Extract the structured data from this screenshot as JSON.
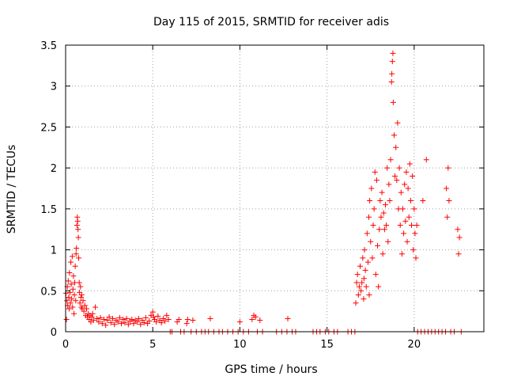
{
  "chart_data": {
    "type": "scatter",
    "title": "Day 115 of 2015, SRMTID for receiver adis",
    "xlabel": "GPS time / hours",
    "ylabel": "SRMTID / TECUs",
    "xlim": [
      0,
      24
    ],
    "ylim": [
      0,
      3.5
    ],
    "grid": true,
    "marker": "+",
    "marker_color": "#ff0000",
    "x_ticks": [
      0,
      5,
      10,
      15,
      20
    ],
    "x_tick_labels": [
      "0",
      "5",
      "10",
      "15",
      "20"
    ],
    "y_ticks": [
      0,
      0.5,
      1,
      1.5,
      2,
      2.5,
      3,
      3.5
    ],
    "y_tick_labels": [
      "0",
      "0.5",
      "1",
      "1.5",
      "2",
      "2.5",
      "3",
      "3.5"
    ],
    "series": [
      {
        "name": "SRMTID",
        "points": [
          [
            0.02,
            0.47
          ],
          [
            0.05,
            0.15
          ],
          [
            0.08,
            0.38
          ],
          [
            0.1,
            0.55
          ],
          [
            0.12,
            0.32
          ],
          [
            0.15,
            0.62
          ],
          [
            0.18,
            0.42
          ],
          [
            0.2,
            0.28
          ],
          [
            0.22,
            0.72
          ],
          [
            0.25,
            0.48
          ],
          [
            0.28,
            0.35
          ],
          [
            0.3,
            0.85
          ],
          [
            0.32,
            0.58
          ],
          [
            0.35,
            0.4
          ],
          [
            0.38,
            0.92
          ],
          [
            0.4,
            0.3
          ],
          [
            0.42,
            0.52
          ],
          [
            0.45,
            0.68
          ],
          [
            0.48,
            0.22
          ],
          [
            0.5,
            0.45
          ],
          [
            0.52,
            0.6
          ],
          [
            0.55,
            0.8
          ],
          [
            0.58,
            0.38
          ],
          [
            0.6,
            0.95
          ],
          [
            0.62,
            1.02
          ],
          [
            0.65,
            1.3
          ],
          [
            0.67,
            1.4
          ],
          [
            0.69,
            1.35
          ],
          [
            0.71,
            1.25
          ],
          [
            0.73,
            1.15
          ],
          [
            0.75,
            0.9
          ],
          [
            0.78,
            0.6
          ],
          [
            0.8,
            0.48
          ],
          [
            0.82,
            0.35
          ],
          [
            0.85,
            0.55
          ],
          [
            0.88,
            0.42
          ],
          [
            0.9,
            0.3
          ],
          [
            0.92,
            0.45
          ],
          [
            0.95,
            0.28
          ],
          [
            1.0,
            0.38
          ],
          [
            1.05,
            0.25
          ],
          [
            1.1,
            0.32
          ],
          [
            1.15,
            0.2
          ],
          [
            1.2,
            0.28
          ],
          [
            1.25,
            0.18
          ],
          [
            1.3,
            0.22
          ],
          [
            1.35,
            0.15
          ],
          [
            1.4,
            0.2
          ],
          [
            1.45,
            0.12
          ],
          [
            1.5,
            0.18
          ],
          [
            1.55,
            0.22
          ],
          [
            1.6,
            0.14
          ],
          [
            1.7,
            0.3
          ],
          [
            1.8,
            0.16
          ],
          [
            1.9,
            0.12
          ],
          [
            2.0,
            0.17
          ],
          [
            2.1,
            0.1
          ],
          [
            2.2,
            0.15
          ],
          [
            2.3,
            0.08
          ],
          [
            2.4,
            0.14
          ],
          [
            2.5,
            0.18
          ],
          [
            2.6,
            0.11
          ],
          [
            2.7,
            0.16
          ],
          [
            2.8,
            0.09
          ],
          [
            2.9,
            0.14
          ],
          [
            3.0,
            0.12
          ],
          [
            3.1,
            0.17
          ],
          [
            3.2,
            0.1
          ],
          [
            3.3,
            0.15
          ],
          [
            3.4,
            0.11
          ],
          [
            3.5,
            0.16
          ],
          [
            3.6,
            0.09
          ],
          [
            3.7,
            0.13
          ],
          [
            3.8,
            0.15
          ],
          [
            3.9,
            0.1
          ],
          [
            4.0,
            0.14
          ],
          [
            4.1,
            0.12
          ],
          [
            4.2,
            0.16
          ],
          [
            4.3,
            0.09
          ],
          [
            4.4,
            0.14
          ],
          [
            4.5,
            0.11
          ],
          [
            4.6,
            0.17
          ],
          [
            4.7,
            0.1
          ],
          [
            4.8,
            0.13
          ],
          [
            4.9,
            0.2
          ],
          [
            5.0,
            0.24
          ],
          [
            5.05,
            0.18
          ],
          [
            5.1,
            0.15
          ],
          [
            5.2,
            0.12
          ],
          [
            5.3,
            0.19
          ],
          [
            5.4,
            0.14
          ],
          [
            5.5,
            0.11
          ],
          [
            5.6,
            0.16
          ],
          [
            5.7,
            0.13
          ],
          [
            5.8,
            0.2
          ],
          [
            5.9,
            0.15
          ],
          [
            6.0,
            0.0
          ],
          [
            6.1,
            0.0
          ],
          [
            6.4,
            0.12
          ],
          [
            6.5,
            0.15
          ],
          [
            6.6,
            0.0
          ],
          [
            6.8,
            0.0
          ],
          [
            6.95,
            0.1
          ],
          [
            7.0,
            0.15
          ],
          [
            7.2,
            0.0
          ],
          [
            7.3,
            0.14
          ],
          [
            7.5,
            0.0
          ],
          [
            7.8,
            0.0
          ],
          [
            8.0,
            0.0
          ],
          [
            8.2,
            0.0
          ],
          [
            8.3,
            0.16
          ],
          [
            8.5,
            0.0
          ],
          [
            8.8,
            0.0
          ],
          [
            9.0,
            0.0
          ],
          [
            9.3,
            0.0
          ],
          [
            9.6,
            0.0
          ],
          [
            9.9,
            0.0
          ],
          [
            10.0,
            0.12
          ],
          [
            10.2,
            0.0
          ],
          [
            10.5,
            0.0
          ],
          [
            10.7,
            0.15
          ],
          [
            10.8,
            0.2
          ],
          [
            10.9,
            0.18
          ],
          [
            11.0,
            0.0
          ],
          [
            11.15,
            0.14
          ],
          [
            11.3,
            0.0
          ],
          [
            12.1,
            0.0
          ],
          [
            12.4,
            0.0
          ],
          [
            12.7,
            0.0
          ],
          [
            12.75,
            0.16
          ],
          [
            13.0,
            0.0
          ],
          [
            13.2,
            0.0
          ],
          [
            14.2,
            0.0
          ],
          [
            14.4,
            0.0
          ],
          [
            14.6,
            0.0
          ],
          [
            14.9,
            0.0
          ],
          [
            15.1,
            0.0
          ],
          [
            15.4,
            0.0
          ],
          [
            15.6,
            0.0
          ],
          [
            16.2,
            0.0
          ],
          [
            16.4,
            0.0
          ],
          [
            16.6,
            0.0
          ],
          [
            16.65,
            0.35
          ],
          [
            16.7,
            0.6
          ],
          [
            16.75,
            0.7
          ],
          [
            16.8,
            0.45
          ],
          [
            16.85,
            0.55
          ],
          [
            16.9,
            0.8
          ],
          [
            16.95,
            0.5
          ],
          [
            17.0,
            0.6
          ],
          [
            17.05,
            0.9
          ],
          [
            17.1,
            0.4
          ],
          [
            17.12,
            0.65
          ],
          [
            17.15,
            1.0
          ],
          [
            17.2,
            0.75
          ],
          [
            17.25,
            0.55
          ],
          [
            17.3,
            1.2
          ],
          [
            17.35,
            0.85
          ],
          [
            17.4,
            1.4
          ],
          [
            17.42,
            0.45
          ],
          [
            17.45,
            1.6
          ],
          [
            17.5,
            1.1
          ],
          [
            17.55,
            1.75
          ],
          [
            17.6,
            0.9
          ],
          [
            17.65,
            1.3
          ],
          [
            17.7,
            1.5
          ],
          [
            17.75,
            1.95
          ],
          [
            17.8,
            0.7
          ],
          [
            17.85,
            1.85
          ],
          [
            17.9,
            1.05
          ],
          [
            17.95,
            0.55
          ],
          [
            18.0,
            1.25
          ],
          [
            18.05,
            1.6
          ],
          [
            18.1,
            1.4
          ],
          [
            18.15,
            1.7
          ],
          [
            18.2,
            0.95
          ],
          [
            18.25,
            1.45
          ],
          [
            18.3,
            1.25
          ],
          [
            18.35,
            1.55
          ],
          [
            18.4,
            1.3
          ],
          [
            18.45,
            2.0
          ],
          [
            18.5,
            1.1
          ],
          [
            18.55,
            1.8
          ],
          [
            18.6,
            1.6
          ],
          [
            18.65,
            2.1
          ],
          [
            18.7,
            3.05
          ],
          [
            18.72,
            3.15
          ],
          [
            18.75,
            3.3
          ],
          [
            18.78,
            3.4
          ],
          [
            18.8,
            2.8
          ],
          [
            18.85,
            2.4
          ],
          [
            18.9,
            1.9
          ],
          [
            18.95,
            2.25
          ],
          [
            19.0,
            1.85
          ],
          [
            19.05,
            2.55
          ],
          [
            19.1,
            1.5
          ],
          [
            19.15,
            2.0
          ],
          [
            19.2,
            1.3
          ],
          [
            19.25,
            1.7
          ],
          [
            19.3,
            0.95
          ],
          [
            19.35,
            1.5
          ],
          [
            19.4,
            1.2
          ],
          [
            19.45,
            1.8
          ],
          [
            19.5,
            1.35
          ],
          [
            19.55,
            1.95
          ],
          [
            19.6,
            1.1
          ],
          [
            19.65,
            1.75
          ],
          [
            19.7,
            1.4
          ],
          [
            19.75,
            2.05
          ],
          [
            19.8,
            1.6
          ],
          [
            19.85,
            1.3
          ],
          [
            19.9,
            1.9
          ],
          [
            19.95,
            1.0
          ],
          [
            20.0,
            1.5
          ],
          [
            20.05,
            1.2
          ],
          [
            20.1,
            0.9
          ],
          [
            20.15,
            1.3
          ],
          [
            20.2,
            0.0
          ],
          [
            20.4,
            0.0
          ],
          [
            20.5,
            1.6
          ],
          [
            20.6,
            0.0
          ],
          [
            20.7,
            2.1
          ],
          [
            20.8,
            0.0
          ],
          [
            21.0,
            0.0
          ],
          [
            21.2,
            0.0
          ],
          [
            21.4,
            0.0
          ],
          [
            21.6,
            0.0
          ],
          [
            21.8,
            0.0
          ],
          [
            21.85,
            1.75
          ],
          [
            21.9,
            1.4
          ],
          [
            21.95,
            2.0
          ],
          [
            22.0,
            1.6
          ],
          [
            22.1,
            0.0
          ],
          [
            22.3,
            0.0
          ],
          [
            22.5,
            1.25
          ],
          [
            22.55,
            0.95
          ],
          [
            22.6,
            1.15
          ],
          [
            22.7,
            0.0
          ]
        ]
      }
    ]
  }
}
